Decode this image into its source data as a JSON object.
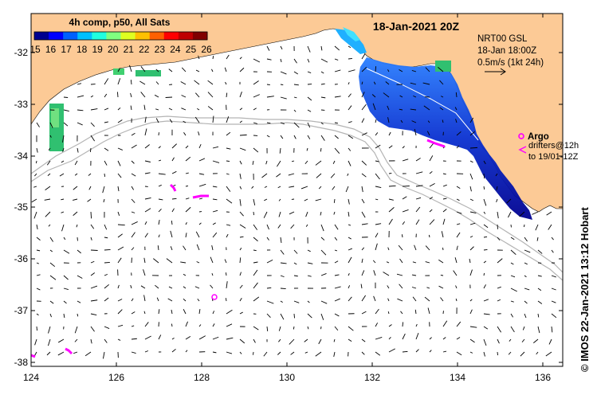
{
  "map": {
    "title": "18-Jan-2021 20Z",
    "colorbar": {
      "title": "4h comp, p50, All Sats",
      "ticks": [
        "15",
        "16",
        "17",
        "18",
        "19",
        "20",
        "21",
        "22",
        "23",
        "24",
        "25",
        "26"
      ],
      "colors": [
        "#00008f",
        "#0000ff",
        "#0060ff",
        "#00c0ff",
        "#20ffdf",
        "#80ff80",
        "#dfff20",
        "#ffc000",
        "#ff6000",
        "#ff0000",
        "#bf0000",
        "#800000"
      ]
    },
    "vectors": {
      "line1": "NRT00 GSL",
      "line2": "18-Jan 18:00Z",
      "scale": "0.5m/s (1kt 24h)"
    },
    "argo_label": "Argo",
    "drifters": {
      "line1": "drifters@12h",
      "line2": "to 19/01-12Z"
    },
    "side_label": "© IMOS 22-Jan-2021 13:12 Hobart",
    "lon_ticks": [
      "124",
      "126",
      "128",
      "130",
      "132",
      "134",
      "136"
    ],
    "lat_ticks": [
      "-32",
      "-33",
      "-34",
      "-35",
      "-36",
      "-37",
      "-38"
    ],
    "colors": {
      "land": "#fcca96",
      "contour": "#b4b4b4",
      "argo": "#ff00ff",
      "arrow": "#000000"
    }
  }
}
